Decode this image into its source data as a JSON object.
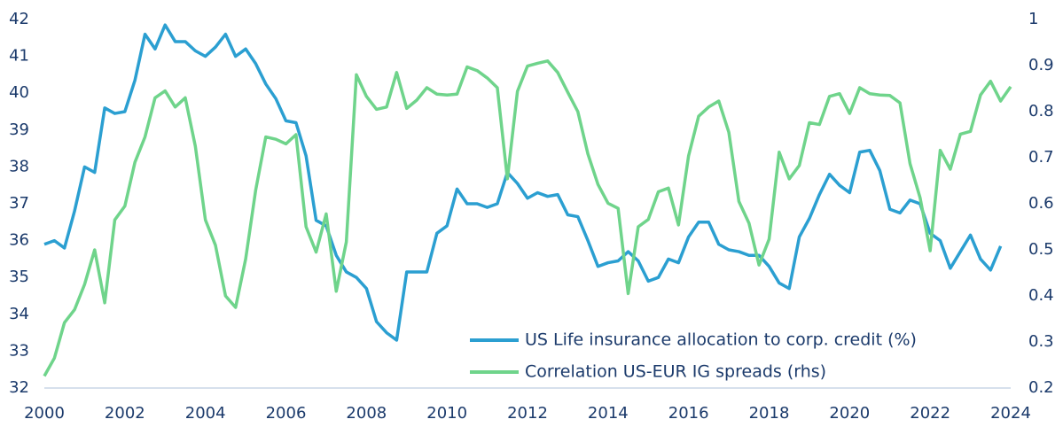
{
  "chart_data": {
    "type": "line",
    "x": [
      2000,
      2000.25,
      2000.5,
      2000.75,
      2001,
      2001.25,
      2001.5,
      2001.75,
      2002,
      2002.25,
      2002.5,
      2002.75,
      2003,
      2003.25,
      2003.5,
      2003.75,
      2004,
      2004.25,
      2004.5,
      2004.75,
      2005,
      2005.25,
      2005.5,
      2005.75,
      2006,
      2006.25,
      2006.5,
      2006.75,
      2007,
      2007.25,
      2007.5,
      2007.75,
      2008,
      2008.25,
      2008.5,
      2008.75,
      2009,
      2009.25,
      2009.5,
      2009.75,
      2010,
      2010.25,
      2010.5,
      2010.75,
      2011,
      2011.25,
      2011.5,
      2011.75,
      2012,
      2012.25,
      2012.5,
      2012.75,
      2013,
      2013.25,
      2013.5,
      2013.75,
      2014,
      2014.25,
      2014.5,
      2014.75,
      2015,
      2015.25,
      2015.5,
      2015.75,
      2016,
      2016.25,
      2016.5,
      2016.75,
      2017,
      2017.25,
      2017.5,
      2017.75,
      2018,
      2018.25,
      2018.5,
      2018.75,
      2019,
      2019.25,
      2019.5,
      2019.75,
      2020,
      2020.25,
      2020.5,
      2020.75,
      2021,
      2021.25,
      2021.5,
      2021.75,
      2022,
      2022.25,
      2022.5,
      2022.75,
      2023,
      2023.25,
      2023.5,
      2023.75,
      2024
    ],
    "series": [
      {
        "name": "US Life insurance allocation to corp. credit (%)",
        "color": "#2b9fd1",
        "axis": "y",
        "values": [
          35.9,
          36.0,
          35.8,
          36.8,
          38.0,
          37.85,
          39.6,
          39.45,
          39.5,
          40.35,
          41.6,
          41.2,
          41.85,
          41.4,
          41.4,
          41.15,
          41.0,
          41.25,
          41.6,
          41.0,
          41.2,
          40.8,
          40.25,
          39.85,
          39.25,
          39.2,
          38.3,
          36.55,
          36.4,
          35.6,
          35.15,
          35.0,
          34.7,
          33.8,
          33.5,
          33.3,
          35.15,
          35.15,
          35.15,
          36.2,
          36.4,
          37.4,
          37.0,
          37.0,
          36.9,
          37.0,
          37.85,
          37.55,
          37.15,
          37.3,
          37.2,
          37.25,
          36.7,
          36.65,
          36.0,
          35.3,
          35.4,
          35.45,
          35.7,
          35.45,
          34.9,
          35.0,
          35.5,
          35.4,
          36.1,
          36.5,
          36.5,
          35.9,
          35.75,
          35.7,
          35.6,
          35.6,
          35.3,
          34.85,
          34.7,
          36.1,
          36.6,
          37.25,
          37.8,
          37.5,
          37.3,
          38.4,
          38.45,
          37.9,
          36.85,
          36.75,
          37.1,
          37.0,
          36.2,
          36.0,
          35.25,
          35.7,
          36.15,
          35.5,
          35.2,
          35.85,
          null
        ]
      },
      {
        "name": "Correlation US-EUR IG spreads (rhs)",
        "color": "#6fd48b",
        "axis": "y2",
        "values": [
          0.226,
          0.265,
          0.342,
          0.37,
          0.425,
          0.5,
          0.385,
          0.565,
          0.595,
          0.69,
          0.745,
          0.83,
          0.845,
          0.81,
          0.83,
          0.725,
          0.565,
          0.51,
          0.4,
          0.375,
          0.48,
          0.63,
          0.745,
          0.74,
          0.73,
          0.75,
          0.55,
          0.495,
          0.578,
          0.41,
          0.517,
          0.88,
          0.833,
          0.805,
          0.81,
          0.885,
          0.807,
          0.825,
          0.852,
          0.838,
          0.836,
          0.838,
          0.897,
          0.889,
          0.873,
          0.852,
          0.654,
          0.844,
          0.899,
          0.905,
          0.91,
          0.885,
          0.842,
          0.8,
          0.708,
          0.642,
          0.601,
          0.59,
          0.405,
          0.55,
          0.566,
          0.626,
          0.634,
          0.554,
          0.704,
          0.79,
          0.81,
          0.823,
          0.755,
          0.605,
          0.558,
          0.467,
          0.523,
          0.712,
          0.654,
          0.683,
          0.776,
          0.772,
          0.833,
          0.839,
          0.796,
          0.852,
          0.839,
          0.836,
          0.835,
          0.819,
          0.687,
          0.613,
          0.498,
          0.716,
          0.675,
          0.751,
          0.757,
          0.836,
          0.866,
          0.823,
          0.854
        ]
      }
    ],
    "xlim": [
      2000,
      2024
    ],
    "xticks": [
      2000,
      2002,
      2004,
      2006,
      2008,
      2010,
      2012,
      2014,
      2016,
      2018,
      2020,
      2022,
      2024
    ],
    "ylim": [
      32,
      42
    ],
    "yticks": [
      32,
      33,
      34,
      35,
      36,
      37,
      38,
      39,
      40,
      41,
      42
    ],
    "y2lim": [
      0.2,
      1
    ],
    "y2ticks": [
      0.2,
      0.3,
      0.4,
      0.5,
      0.6,
      0.7,
      0.8,
      0.9,
      1
    ],
    "legend": "lower right"
  }
}
